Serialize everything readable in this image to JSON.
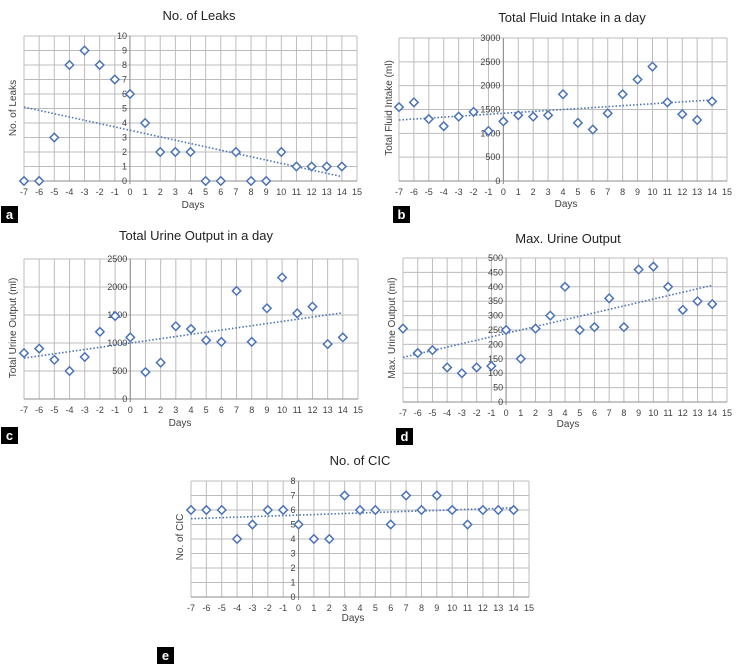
{
  "chart_data": [
    {
      "type": "scatter",
      "panel": "a",
      "title": "No. of Leaks",
      "xlabel": "Days",
      "ylabel": "No. of Leaks",
      "xlim": [
        -7,
        15
      ],
      "ylim": [
        0,
        10
      ],
      "xticks": [
        -7,
        -6,
        -5,
        -4,
        -3,
        -2,
        -1,
        0,
        1,
        2,
        3,
        4,
        5,
        6,
        7,
        8,
        9,
        10,
        11,
        12,
        13,
        14,
        15
      ],
      "yticks": [
        0,
        1,
        2,
        3,
        4,
        5,
        6,
        7,
        8,
        9,
        10
      ],
      "grid": true,
      "trendline": "linear",
      "trend_ends": [
        5.1,
        0.3
      ],
      "x": [
        -7,
        -6,
        -5,
        -4,
        -3,
        -2,
        -1,
        0,
        1,
        2,
        3,
        4,
        5,
        6,
        7,
        8,
        9,
        10,
        11,
        12,
        13,
        14
      ],
      "y": [
        0,
        0,
        3,
        8,
        9,
        8,
        7,
        6,
        4,
        2,
        2,
        2,
        0,
        0,
        2,
        0,
        0,
        2,
        1,
        1,
        1,
        1
      ]
    },
    {
      "type": "scatter",
      "panel": "b",
      "title": "Total Fluid Intake in a day",
      "xlabel": "Days",
      "ylabel": "Total Fluid Intake (ml)",
      "xlim": [
        -7,
        15
      ],
      "ylim": [
        0,
        3000
      ],
      "xticks": [
        -7,
        -6,
        -5,
        -4,
        -3,
        -2,
        -1,
        0,
        1,
        2,
        3,
        4,
        5,
        6,
        7,
        8,
        9,
        10,
        11,
        12,
        13,
        14,
        15
      ],
      "yticks": [
        0,
        500,
        1000,
        1500,
        2000,
        2500,
        3000
      ],
      "grid": true,
      "trendline": "linear",
      "trend_ends": [
        1280,
        1700
      ],
      "x": [
        -7,
        -6,
        -5,
        -4,
        -3,
        -2,
        -1,
        0,
        1,
        2,
        3,
        4,
        5,
        6,
        7,
        8,
        9,
        10,
        11,
        12,
        13,
        14
      ],
      "y": [
        1550,
        1650,
        1300,
        1150,
        1350,
        1450,
        1050,
        1250,
        1380,
        1350,
        1380,
        1820,
        1220,
        1080,
        1420,
        1820,
        2130,
        2400,
        1650,
        1400,
        1280,
        1670
      ]
    },
    {
      "type": "scatter",
      "panel": "c",
      "title": "Total Urine Output in a day",
      "xlabel": "Days",
      "ylabel": "Total Urine Output (ml)",
      "xlim": [
        -7,
        15
      ],
      "ylim": [
        0,
        2500
      ],
      "xticks": [
        -7,
        -6,
        -5,
        -4,
        -3,
        -2,
        -1,
        0,
        1,
        2,
        3,
        4,
        5,
        6,
        7,
        8,
        9,
        10,
        11,
        12,
        13,
        14,
        15
      ],
      "yticks": [
        0,
        500,
        1000,
        1500,
        2000,
        2500
      ],
      "grid": true,
      "trendline": "linear",
      "trend_ends": [
        730,
        1540
      ],
      "x": [
        -7,
        -6,
        -5,
        -4,
        -3,
        -2,
        -1,
        0,
        1,
        2,
        3,
        4,
        5,
        6,
        7,
        8,
        9,
        10,
        11,
        12,
        13,
        14
      ],
      "y": [
        820,
        900,
        700,
        500,
        750,
        1200,
        1480,
        1100,
        480,
        650,
        1300,
        1250,
        1050,
        1020,
        1930,
        1020,
        1620,
        2170,
        1530,
        1650,
        980,
        1100
      ]
    },
    {
      "type": "scatter",
      "panel": "d",
      "title": "Max. Urine Output",
      "xlabel": "Days",
      "ylabel": "Max. Urine Output (ml)",
      "xlim": [
        -7,
        15
      ],
      "ylim": [
        0,
        500
      ],
      "xticks": [
        -7,
        -6,
        -5,
        -4,
        -3,
        -2,
        -1,
        0,
        1,
        2,
        3,
        4,
        5,
        6,
        7,
        8,
        9,
        10,
        11,
        12,
        13,
        14,
        15
      ],
      "yticks": [
        0,
        50,
        100,
        150,
        200,
        250,
        300,
        350,
        400,
        450,
        500
      ],
      "grid": true,
      "trendline": "linear",
      "trend_ends": [
        155,
        405
      ],
      "x": [
        -7,
        -6,
        -5,
        -4,
        -3,
        -2,
        -1,
        0,
        1,
        2,
        3,
        4,
        5,
        6,
        7,
        8,
        9,
        10,
        11,
        12,
        13,
        14
      ],
      "y": [
        255,
        170,
        180,
        120,
        100,
        120,
        125,
        250,
        150,
        255,
        300,
        400,
        250,
        260,
        360,
        260,
        460,
        470,
        400,
        320,
        350,
        340
      ]
    },
    {
      "type": "scatter",
      "panel": "e",
      "title": "No. of CIC",
      "xlabel": "Days",
      "ylabel": "No. of CIC",
      "xlim": [
        -7,
        15
      ],
      "ylim": [
        0,
        8
      ],
      "xticks": [
        -7,
        -6,
        -5,
        -4,
        -3,
        -2,
        -1,
        0,
        1,
        2,
        3,
        4,
        5,
        6,
        7,
        8,
        9,
        10,
        11,
        12,
        13,
        14,
        15
      ],
      "yticks": [
        0,
        1,
        2,
        3,
        4,
        5,
        6,
        7,
        8
      ],
      "grid": true,
      "trendline": "linear",
      "trend_ends": [
        5.4,
        6.15
      ],
      "x": [
        -7,
        -6,
        -5,
        -4,
        -3,
        -2,
        -1,
        0,
        1,
        2,
        3,
        4,
        5,
        6,
        7,
        8,
        9,
        10,
        11,
        12,
        13,
        14
      ],
      "y": [
        6,
        6,
        6,
        4,
        5,
        6,
        6,
        5,
        4,
        4,
        7,
        6,
        6,
        5,
        7,
        6,
        7,
        6,
        5,
        6,
        6,
        6
      ]
    }
  ],
  "style": {
    "marker_color": "#4a72b8",
    "trend_color": "#4a72b8",
    "grid_color": "#bcbcbc",
    "text_color": "#404040",
    "label_bg": "#000000",
    "label_fg": "#ffffff"
  }
}
